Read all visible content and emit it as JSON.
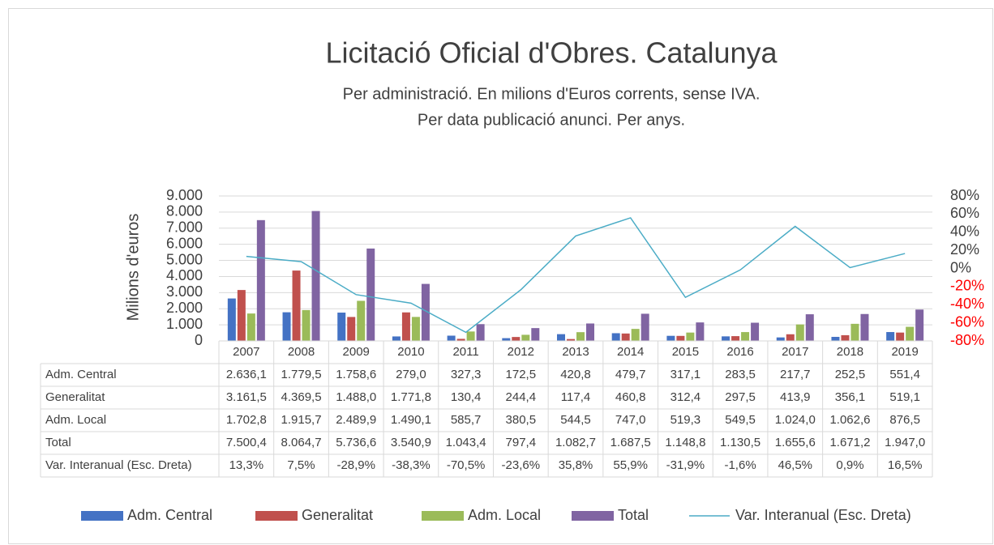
{
  "chart_data": {
    "type": "bar",
    "title": "Licitació Oficial d'Obres. Catalunya",
    "subtitle": [
      "Per administració. En milions d'Euros corrents, sense IVA.",
      "Per data publicació anunci.  Per anys."
    ],
    "y_axis_label": "Milions d'euros",
    "categories": [
      "2007",
      "2008",
      "2009",
      "2010",
      "2011",
      "2012",
      "2013",
      "2014",
      "2015",
      "2016",
      "2017",
      "2018",
      "2019"
    ],
    "series": [
      {
        "name": "Adm. Central",
        "color": "#4472c4",
        "type": "bar",
        "values": [
          2636.1,
          1779.5,
          1758.6,
          279.0,
          327.3,
          172.5,
          420.8,
          479.7,
          317.1,
          283.5,
          217.7,
          252.5,
          551.4
        ],
        "value_labels": [
          "2.636,1",
          "1.779,5",
          "1.758,6",
          "279,0",
          "327,3",
          "172,5",
          "420,8",
          "479,7",
          "317,1",
          "283,5",
          "217,7",
          "252,5",
          "551,4"
        ]
      },
      {
        "name": "Generalitat",
        "color": "#c0504d",
        "type": "bar",
        "values": [
          3161.5,
          4369.5,
          1488.0,
          1771.8,
          130.4,
          244.4,
          117.4,
          460.8,
          312.4,
          297.5,
          413.9,
          356.1,
          519.1
        ],
        "value_labels": [
          "3.161,5",
          "4.369,5",
          "1.488,0",
          "1.771,8",
          "130,4",
          "244,4",
          "117,4",
          "460,8",
          "312,4",
          "297,5",
          "413,9",
          "356,1",
          "519,1"
        ]
      },
      {
        "name": "Adm. Local",
        "color": "#9bbb59",
        "type": "bar",
        "values": [
          1702.8,
          1915.7,
          2489.9,
          1490.1,
          585.7,
          380.5,
          544.5,
          747.0,
          519.3,
          549.5,
          1024.0,
          1062.6,
          876.5
        ],
        "value_labels": [
          "1.702,8",
          "1.915,7",
          "2.489,9",
          "1.490,1",
          "585,7",
          "380,5",
          "544,5",
          "747,0",
          "519,3",
          "549,5",
          "1.024,0",
          "1.062,6",
          "876,5"
        ]
      },
      {
        "name": "Total",
        "color": "#8064a2",
        "type": "bar",
        "values": [
          7500.4,
          8064.7,
          5736.6,
          3540.9,
          1043.4,
          797.4,
          1082.7,
          1687.5,
          1148.8,
          1130.5,
          1655.6,
          1671.2,
          1947.0
        ],
        "value_labels": [
          "7.500,4",
          "8.064,7",
          "5.736,6",
          "3.540,9",
          "1.043,4",
          "797,4",
          "1.082,7",
          "1.687,5",
          "1.148,8",
          "1.130,5",
          "1.655,6",
          "1.671,2",
          "1.947,0"
        ]
      },
      {
        "name": "Var. Interanual (Esc. Dreta)",
        "color": "#4bacc6",
        "type": "line",
        "axis": "y2",
        "values": [
          13.3,
          7.5,
          -28.9,
          -38.3,
          -70.5,
          -23.6,
          35.8,
          55.9,
          -31.9,
          -1.6,
          46.5,
          0.9,
          16.5
        ],
        "value_labels": [
          "13,3%",
          "7,5%",
          "-28,9%",
          "-38,3%",
          "-70,5%",
          "-23,6%",
          "35,8%",
          "55,9%",
          "-31,9%",
          "-1,6%",
          "46,5%",
          "0,9%",
          "16,5%"
        ]
      }
    ],
    "ylim": [
      0,
      9000
    ],
    "yticks": [
      0,
      {
        "value": 1000,
        "label": "1.000"
      },
      {
        "value": 2000,
        "label": "2.000"
      },
      {
        "value": 3000,
        "label": "3.000"
      },
      {
        "value": 4000,
        "label": "4.000"
      },
      {
        "value": 5000,
        "label": "5.000"
      },
      {
        "value": 6000,
        "label": "6.000"
      },
      {
        "value": 7000,
        "label": "7.000"
      },
      {
        "value": 8000,
        "label": "8.000"
      },
      {
        "value": 9000,
        "label": "9.000"
      }
    ],
    "y2lim": [
      -80,
      80
    ],
    "y2ticks": [
      {
        "value": -80,
        "label": "-80%"
      },
      {
        "value": -60,
        "label": "-60%"
      },
      {
        "value": -40,
        "label": "-40%"
      },
      {
        "value": -20,
        "label": "-20%"
      },
      {
        "value": 0,
        "label": "0%"
      },
      {
        "value": 20,
        "label": "20%"
      },
      {
        "value": 40,
        "label": "40%"
      },
      {
        "value": 60,
        "label": "60%"
      },
      {
        "value": 80,
        "label": "80%"
      }
    ],
    "y2_negative_color": "#ff0000",
    "grid": true,
    "legend": "bottom",
    "data_table": true
  }
}
